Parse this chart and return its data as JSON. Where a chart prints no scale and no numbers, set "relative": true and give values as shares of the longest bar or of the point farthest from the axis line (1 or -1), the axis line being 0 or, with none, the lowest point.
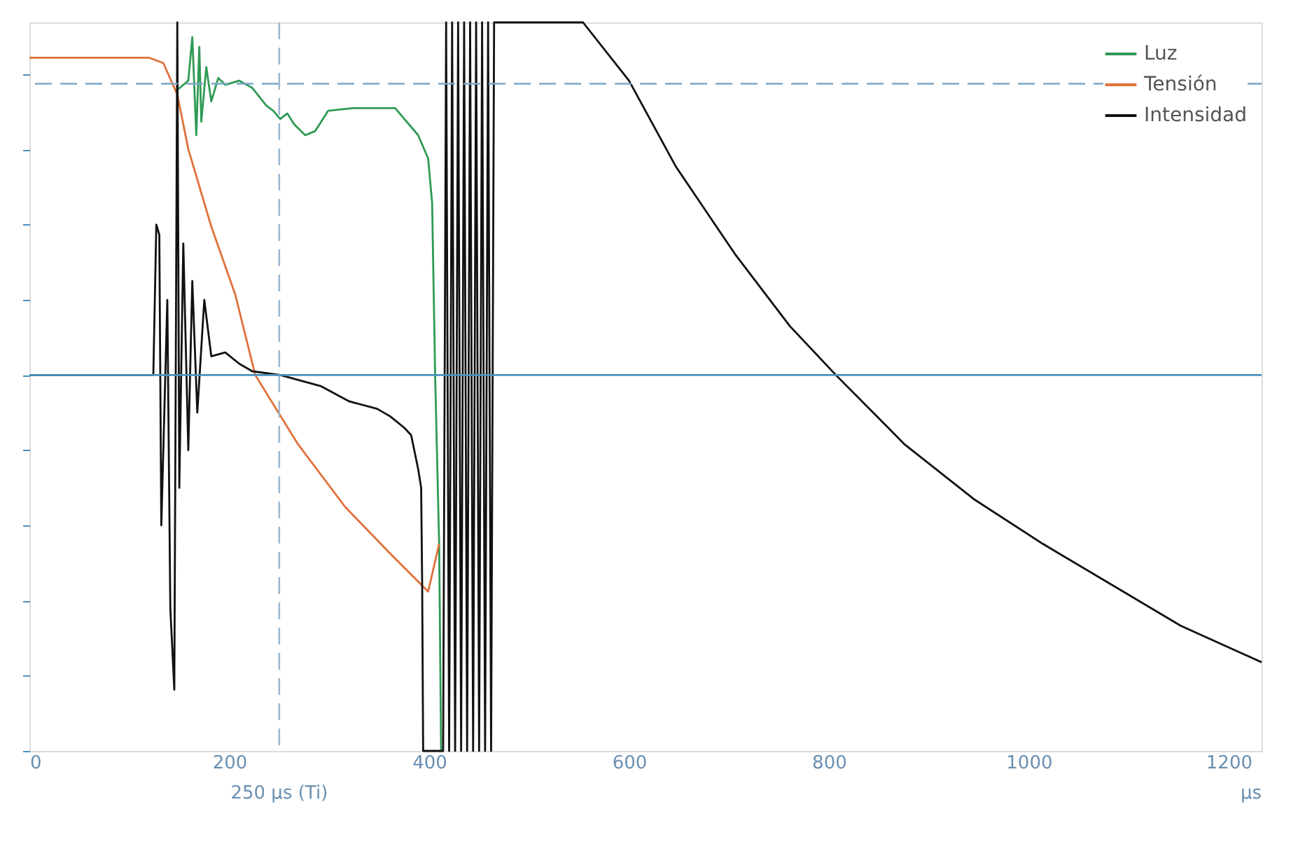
{
  "chart_data": {
    "type": "line",
    "relative": true,
    "xlabel": "µs",
    "xlim": [
      0,
      1233
    ],
    "xticks": [
      0,
      200,
      400,
      600,
      800,
      1000,
      1200
    ],
    "tick_labels": "x",
    "grid": false,
    "legend": "top right",
    "line_style": "solid",
    "marker": "none",
    "series": [
      {
        "name": "Luz",
        "color": "#2f9a55",
        "x": [
          146,
          159,
          163,
          167,
          170,
          172,
          177,
          182,
          189,
          196,
          210,
          223,
          237,
          244,
          251,
          258,
          265,
          276,
          286,
          299,
          324,
          366,
          389,
          399,
          403,
          406,
          410,
          412
        ],
        "values": [
          0.754,
          0.783,
          0.899,
          0.638,
          0.873,
          0.674,
          0.819,
          0.728,
          0.79,
          0.772,
          0.783,
          0.764,
          0.717,
          0.703,
          0.681,
          0.696,
          0.667,
          0.638,
          0.649,
          0.703,
          0.71,
          0.71,
          0.638,
          0.576,
          0.457,
          0.0,
          -0.449,
          -1.0
        ]
      },
      {
        "name": "Tensión",
        "color": "#e0703a",
        "x": [
          0,
          120,
          134,
          148,
          159,
          182,
          206,
          226,
          269,
          316,
          361,
          399,
          410
        ],
        "values": [
          0.844,
          0.844,
          0.83,
          0.746,
          0.601,
          0.395,
          0.214,
          0.0,
          -0.185,
          -0.351,
          -0.475,
          -0.576,
          -0.449
        ]
      },
      {
        "name": "Intensidad",
        "color": "#111111",
        "x": [
          0,
          124,
          127,
          130,
          132,
          138,
          141,
          145,
          148,
          150,
          154,
          159,
          163,
          168,
          175,
          182,
          196,
          210,
          223,
          251,
          292,
          320,
          348,
          361,
          375,
          382,
          389,
          392,
          393,
          394,
          414,
          417,
          420,
          423,
          426,
          429,
          432,
          435,
          438,
          441,
          444,
          447,
          450,
          453,
          456,
          459,
          462,
          465,
          468,
          554,
          600,
          647,
          706,
          761,
          807,
          876,
          945,
          1014,
          1083,
          1152,
          1233
        ],
        "values": [
          0.0,
          0.0,
          0.4,
          0.373,
          -0.4,
          0.2,
          -0.62,
          -0.837,
          0.938,
          -0.3,
          0.35,
          -0.2,
          0.25,
          -0.1,
          0.2,
          0.05,
          0.06,
          0.03,
          0.01,
          0.0,
          -0.03,
          -0.07,
          -0.09,
          -0.11,
          -0.14,
          -0.16,
          -0.25,
          -0.3,
          -0.55,
          -1.0,
          -1.0,
          0.938,
          -1.0,
          0.938,
          -1.0,
          0.938,
          -1.0,
          0.938,
          -1.0,
          0.938,
          -1.0,
          0.938,
          -1.0,
          0.938,
          -1.0,
          0.938,
          -1.0,
          0.938,
          0.938,
          0.938,
          0.783,
          0.554,
          0.322,
          0.13,
          0.0,
          -0.185,
          -0.33,
          -0.449,
          -0.558,
          -0.667,
          -0.764
        ]
      }
    ],
    "ref_lines": [
      {
        "axis": "y",
        "value": 0,
        "color": "#4a90c0",
        "line_style": "solid"
      },
      {
        "axis": "y",
        "value": 0.775,
        "color": "#7aa6c8",
        "line_style": "dashed"
      },
      {
        "axis": "x",
        "value": 250,
        "label": "250 µs (Ti)",
        "color": "#9cb8d0",
        "line_style": "dashed"
      }
    ]
  }
}
